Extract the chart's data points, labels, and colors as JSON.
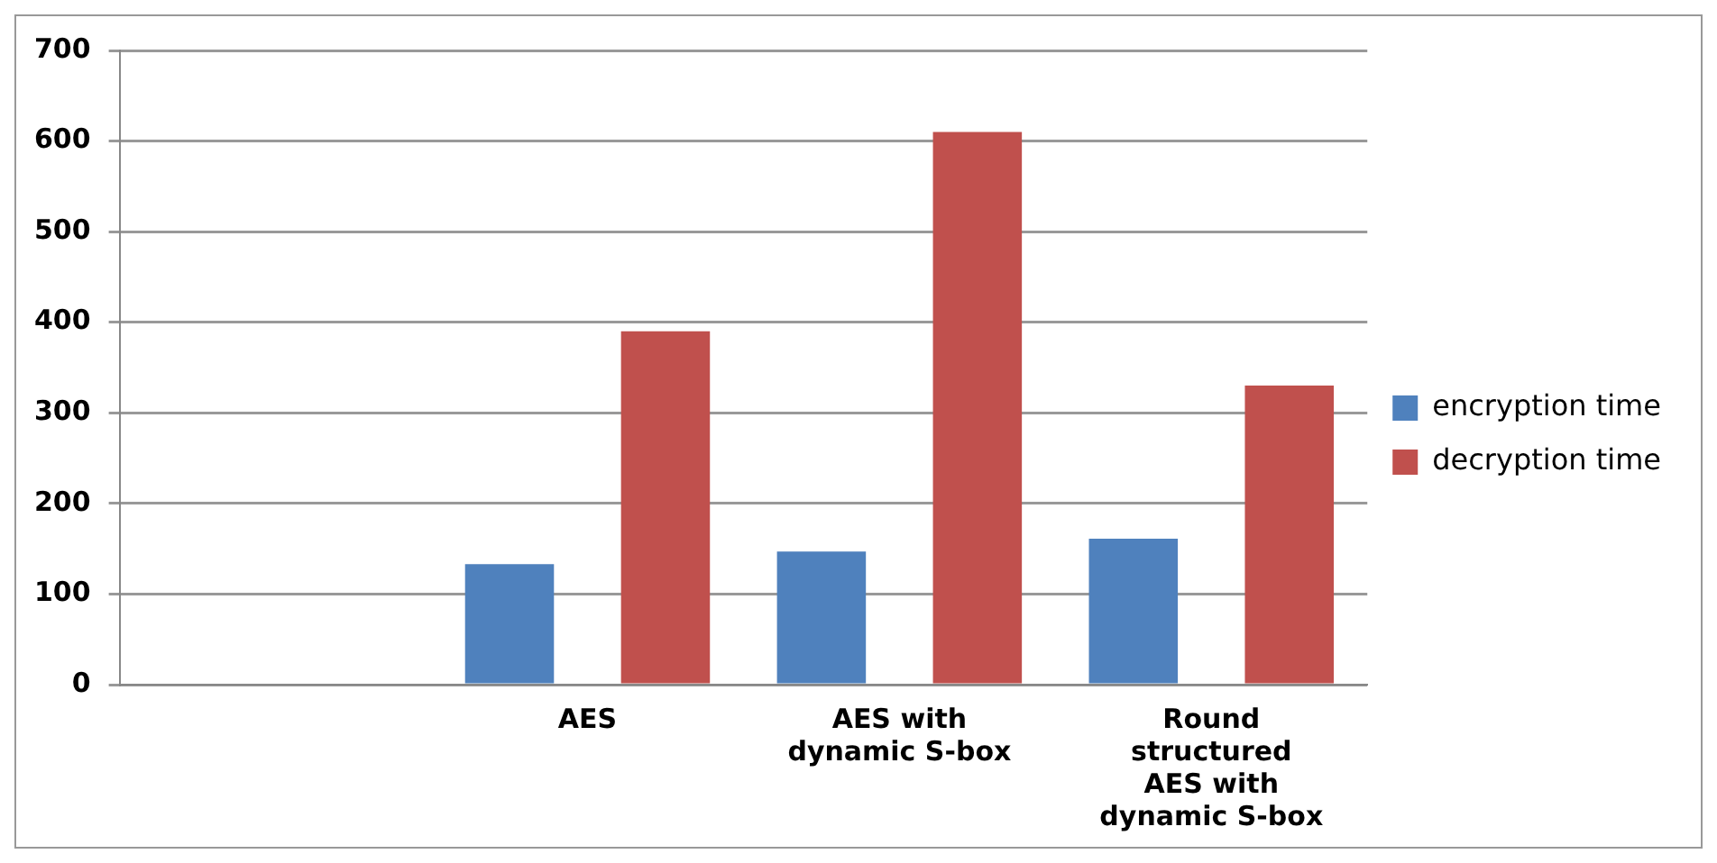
{
  "chart_data": {
    "type": "bar",
    "categories": [
      null,
      "AES",
      "AES with dynamic S-box",
      "Round structured AES with dynamic S-box"
    ],
    "series": [
      {
        "name": "encryption time",
        "color": "#4f81bd",
        "values": [
          null,
          133,
          147,
          161
        ]
      },
      {
        "name": "decryption time",
        "color": "#c0504d",
        "values": [
          null,
          390,
          610,
          330
        ]
      }
    ],
    "ylim": [
      0,
      700
    ],
    "yticks": [
      0,
      100,
      200,
      300,
      400,
      500,
      600,
      700
    ],
    "grid": "y",
    "legend": "right"
  }
}
